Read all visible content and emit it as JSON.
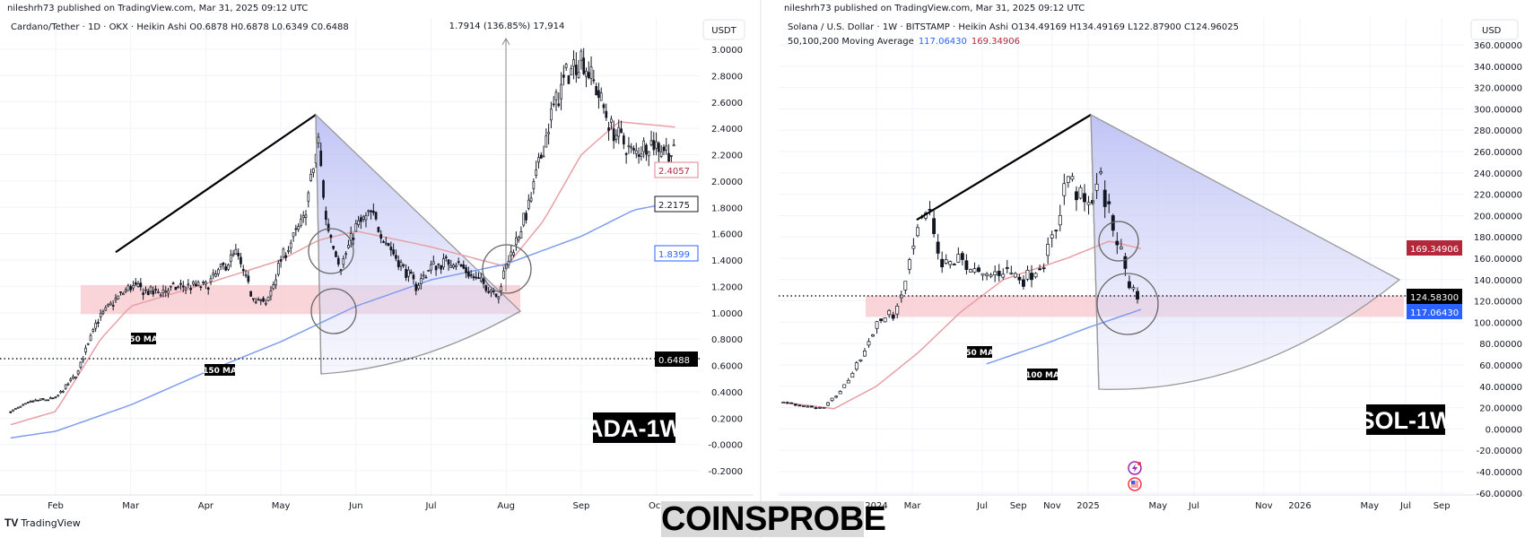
{
  "left": {
    "published": "nileshrh73 published on TradingView.com, Mar 31, 2025 09:12 UTC",
    "title": "Cardano/Tether · 1D · OKX · Heikin Ashi  O0.6878  H0.6878  L0.6349  C0.6488",
    "measure_label": "1.7914 (136.85%) 17,914",
    "currency": "USDT",
    "watermark": "ADA-1W",
    "ma_labels": {
      "fast": "50 MA",
      "slow": "150 MA"
    },
    "price_labels": {
      "ma50": "2.4057",
      "last": "2.2175",
      "ma150": "1.8399",
      "current": "0.6488"
    }
  },
  "right": {
    "published": "nileshrh73 published on TradingView.com, Mar 31, 2025 09:12 UTC",
    "title": "Solana / U.S. Dollar · 1W · BITSTAMP · Heikin Ashi  O134.49169  H134.49169  L122.87900  C124.96025",
    "ma_title": "50,100,200 Moving Average",
    "ma_value_blue": "117.06430",
    "ma_value_red": "169.34906",
    "currency": "USD",
    "watermark": "SOL-1W",
    "ma_labels": {
      "fast": "50 MA",
      "slow": "100 MA"
    },
    "price_labels": {
      "ma_red": "169.34906",
      "current": "124.58300",
      "ma_blue": "117.06430"
    },
    "icons": [
      "lightning-event-icon",
      "us-flag-event-icon"
    ]
  },
  "footer": {
    "tradingview": "TradingView",
    "brand": "COINSPROBE"
  },
  "colors": {
    "ma_red": "#e8a0a6",
    "ma_blue": "#7f9cf0",
    "zone": "#f8c9cf",
    "red_label": "#b2283a",
    "blue_label": "#2962ff"
  },
  "chart_data": [
    {
      "type": "candlestick",
      "title": "Cardano/Tether 1D Heikin Ashi",
      "x_unit": "months (1 = Feb 1)",
      "x_ticks": [
        "Feb",
        "Mar",
        "Apr",
        "May",
        "Jun",
        "Jul",
        "Aug",
        "Sep",
        "Oct"
      ],
      "y_ticks": [
        "3.0000",
        "2.8000",
        "2.6000",
        "2.4000",
        "2.2000",
        "2.0000",
        "1.8000",
        "1.6000",
        "1.4000",
        "1.2000",
        "1.0000",
        "0.8000",
        "0.6000",
        "0.4000",
        "0.2000",
        "-0.0000",
        "-0.2000"
      ],
      "ylim": [
        -0.2,
        3.0
      ],
      "price": [
        [
          0.4,
          0.25
        ],
        [
          0.7,
          0.33
        ],
        [
          1.0,
          0.35
        ],
        [
          1.3,
          0.55
        ],
        [
          1.5,
          0.9
        ],
        [
          1.8,
          1.1
        ],
        [
          2.0,
          1.2
        ],
        [
          2.3,
          1.15
        ],
        [
          2.7,
          1.2
        ],
        [
          3.0,
          1.2
        ],
        [
          3.4,
          1.45
        ],
        [
          3.6,
          1.15
        ],
        [
          3.8,
          1.05
        ],
        [
          4.0,
          1.4
        ],
        [
          4.3,
          1.7
        ],
        [
          4.5,
          2.3
        ],
        [
          4.6,
          1.7
        ],
        [
          4.8,
          1.35
        ],
        [
          5.0,
          1.65
        ],
        [
          5.2,
          1.75
        ],
        [
          5.5,
          1.45
        ],
        [
          5.8,
          1.2
        ],
        [
          6.0,
          1.35
        ],
        [
          6.3,
          1.4
        ],
        [
          6.6,
          1.25
        ],
        [
          6.9,
          1.15
        ],
        [
          7.0,
          1.35
        ],
        [
          7.3,
          1.8
        ],
        [
          7.6,
          2.5
        ],
        [
          7.8,
          2.8
        ],
        [
          8.0,
          2.95
        ],
        [
          8.2,
          2.7
        ],
        [
          8.4,
          2.4
        ],
        [
          8.7,
          2.2
        ],
        [
          8.9,
          2.3
        ],
        [
          9.1,
          2.25
        ],
        [
          9.25,
          2.2
        ]
      ],
      "ma50": [
        [
          0.4,
          0.15
        ],
        [
          1.0,
          0.25
        ],
        [
          1.6,
          0.8
        ],
        [
          2.0,
          1.05
        ],
        [
          3.0,
          1.22
        ],
        [
          4.0,
          1.4
        ],
        [
          4.5,
          1.55
        ],
        [
          5.0,
          1.62
        ],
        [
          6.0,
          1.5
        ],
        [
          7.0,
          1.35
        ],
        [
          7.5,
          1.7
        ],
        [
          8.0,
          2.2
        ],
        [
          8.5,
          2.45
        ],
        [
          9.25,
          2.41
        ]
      ],
      "ma150": [
        [
          0.4,
          0.05
        ],
        [
          1.0,
          0.1
        ],
        [
          2.0,
          0.3
        ],
        [
          3.0,
          0.55
        ],
        [
          4.0,
          0.78
        ],
        [
          5.0,
          1.05
        ],
        [
          6.0,
          1.25
        ],
        [
          7.0,
          1.37
        ],
        [
          8.0,
          1.58
        ],
        [
          8.7,
          1.78
        ],
        [
          9.25,
          1.84
        ]
      ],
      "zone": [
        0.99,
        1.21
      ],
      "trendline": [
        [
          1.8,
          1.46
        ],
        [
          4.5,
          2.5
        ]
      ],
      "measure": {
        "from": 0.5,
        "to": 3.0,
        "change": 1.7914,
        "percent": 136.85
      },
      "current_price": 0.6488
    },
    {
      "type": "candlestick",
      "title": "Solana / U.S. Dollar 1W Heikin Ashi",
      "x_unit": "year",
      "x_ticks": [
        "2024",
        "Mar",
        "Jul",
        "Sep",
        "Nov",
        "2025",
        "May",
        "Jul",
        "Nov",
        "2026",
        "May",
        "Jul",
        "Sep"
      ],
      "x_tick_values": [
        2024.0,
        2024.17,
        2024.5,
        2024.67,
        2024.83,
        2025.0,
        2025.33,
        2025.5,
        2025.83,
        2026.0,
        2026.33,
        2026.5,
        2026.67
      ],
      "y_ticks": [
        "360.00000",
        "340.00000",
        "320.00000",
        "300.00000",
        "280.00000",
        "260.00000",
        "240.00000",
        "220.00000",
        "200.00000",
        "180.00000",
        "160.00000",
        "140.00000",
        "120.00000",
        "100.00000",
        "80.00000",
        "60.00000",
        "40.00000",
        "20.00000",
        "0.00000",
        "-20.00000",
        "-40.00000",
        "-60.00000"
      ],
      "ylim": [
        -60,
        360
      ],
      "price": [
        [
          2023.56,
          25
        ],
        [
          2023.75,
          19
        ],
        [
          2023.85,
          40
        ],
        [
          2023.95,
          75
        ],
        [
          2024.0,
          100
        ],
        [
          2024.1,
          110
        ],
        [
          2024.2,
          190
        ],
        [
          2024.25,
          200
        ],
        [
          2024.3,
          150
        ],
        [
          2024.4,
          160
        ],
        [
          2024.5,
          140
        ],
        [
          2024.6,
          150
        ],
        [
          2024.7,
          140
        ],
        [
          2024.8,
          160
        ],
        [
          2024.85,
          190
        ],
        [
          2024.9,
          240
        ],
        [
          2024.95,
          220
        ],
        [
          2025.0,
          205
        ],
        [
          2025.05,
          240
        ],
        [
          2025.1,
          200
        ],
        [
          2025.15,
          170
        ],
        [
          2025.2,
          132
        ],
        [
          2025.25,
          125
        ]
      ],
      "ma_red": [
        [
          2023.56,
          25
        ],
        [
          2023.8,
          19
        ],
        [
          2024.0,
          40
        ],
        [
          2024.2,
          72
        ],
        [
          2024.4,
          110
        ],
        [
          2024.6,
          140
        ],
        [
          2024.9,
          160
        ],
        [
          2025.1,
          176
        ],
        [
          2025.25,
          169
        ]
      ],
      "ma_blue": [
        [
          2024.52,
          61
        ],
        [
          2024.8,
          80
        ],
        [
          2025.0,
          95
        ],
        [
          2025.25,
          112
        ]
      ],
      "zone": [
        105,
        125
      ],
      "trendline": [
        [
          2024.19,
          196
        ],
        [
          2025.0,
          294
        ]
      ],
      "current_price": 124.583
    }
  ]
}
